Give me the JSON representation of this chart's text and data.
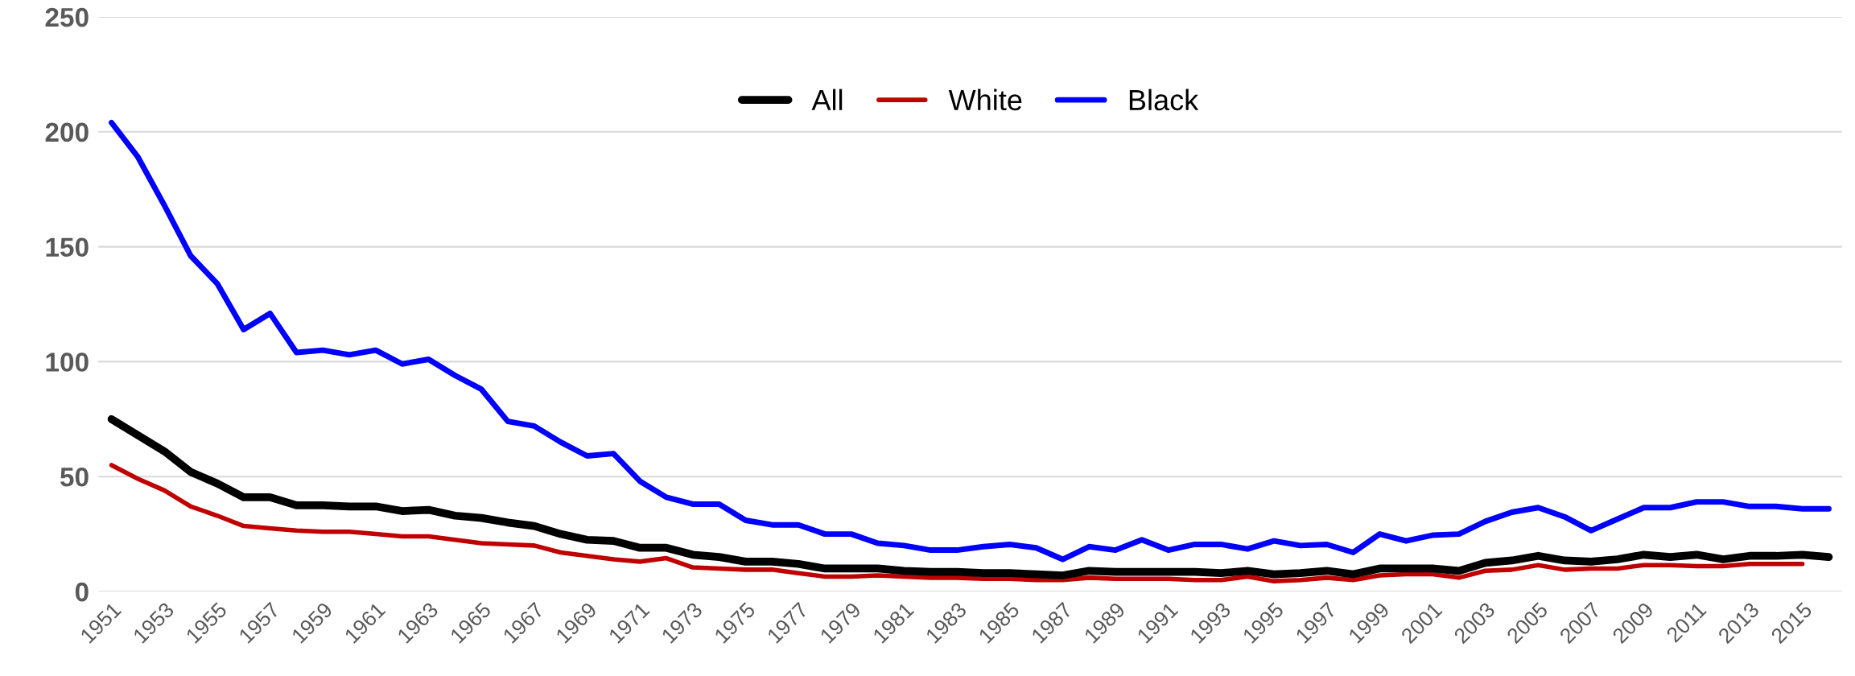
{
  "chart_data": {
    "type": "line",
    "categories": [
      "1951",
      null,
      "1953",
      null,
      "1955",
      null,
      "1957",
      null,
      "1959",
      null,
      "1961",
      null,
      "1963",
      null,
      "1965",
      null,
      "1967",
      null,
      "1969",
      null,
      "1971",
      null,
      "1973",
      null,
      "1975",
      null,
      "1977",
      null,
      "1979",
      null,
      "1981",
      null,
      "1983",
      null,
      "1985",
      null,
      "1987",
      null,
      "1989",
      null,
      "1991",
      null,
      "1993",
      null,
      "1995",
      null,
      "1997",
      null,
      "1999",
      null,
      "2001",
      null,
      "2003",
      null,
      "2005",
      null,
      "2007",
      null,
      "2009",
      null,
      "2011",
      null,
      "2013",
      null,
      "2015",
      null
    ],
    "series": [
      {
        "name": "All",
        "color": "#000000",
        "values": [
          75,
          68,
          61,
          52,
          47,
          41,
          41,
          37.5,
          37.5,
          37,
          37,
          35,
          35.5,
          33,
          32,
          30,
          28.5,
          25,
          22.5,
          22,
          19,
          19,
          16,
          15,
          13,
          13,
          12,
          10,
          10,
          10,
          9,
          8.5,
          8.5,
          8,
          8,
          7.5,
          7,
          9,
          8.5,
          8.5,
          8.5,
          8.5,
          8,
          9,
          7.5,
          8,
          9,
          7.5,
          10,
          10,
          10,
          9,
          12.5,
          13.5,
          15.5,
          13.5,
          13,
          14,
          16,
          15,
          16,
          14,
          15.5,
          15.5,
          16,
          15
        ]
      },
      {
        "name": "White",
        "color": "#c00000",
        "values": [
          55,
          49,
          44,
          37,
          33,
          28.5,
          27.5,
          26.5,
          26,
          26,
          25,
          24,
          24,
          22.5,
          21,
          20.5,
          20,
          17,
          15.5,
          14,
          13,
          14.5,
          10.5,
          10,
          9.5,
          9.5,
          8,
          6.5,
          6.5,
          7,
          6.5,
          6,
          6,
          5.5,
          5.5,
          5,
          5,
          6,
          5.5,
          5.5,
          5.5,
          5,
          5,
          6.5,
          4.5,
          5,
          6,
          5,
          7,
          7.5,
          7.5,
          6,
          9,
          9.5,
          11.5,
          9.5,
          10,
          10,
          11.5,
          11.5,
          11,
          11,
          12,
          12,
          12,
          null
        ]
      },
      {
        "name": "Black",
        "color": "#0000ff",
        "values": [
          204,
          189,
          168,
          146,
          134,
          114,
          121,
          104,
          105,
          103,
          105,
          99,
          101,
          94,
          88,
          74,
          72,
          65,
          59,
          60,
          48,
          41,
          38,
          38,
          31,
          29,
          29,
          25,
          25,
          21,
          20,
          18,
          18,
          19.5,
          20.5,
          19,
          14,
          19.5,
          18,
          22.5,
          18,
          20.5,
          20.5,
          18.5,
          22,
          20,
          20.5,
          17,
          25,
          22,
          24.5,
          25,
          30.5,
          34.5,
          36.5,
          32.5,
          26.5,
          31.5,
          36.5,
          36.5,
          39,
          39,
          37,
          37,
          36,
          36
        ]
      }
    ],
    "ylim": [
      0,
      250
    ],
    "yticks": [
      0,
      50,
      100,
      150,
      200,
      250
    ],
    "grid": "y",
    "legend": "top",
    "marker": "none",
    "line_style": "solid"
  }
}
